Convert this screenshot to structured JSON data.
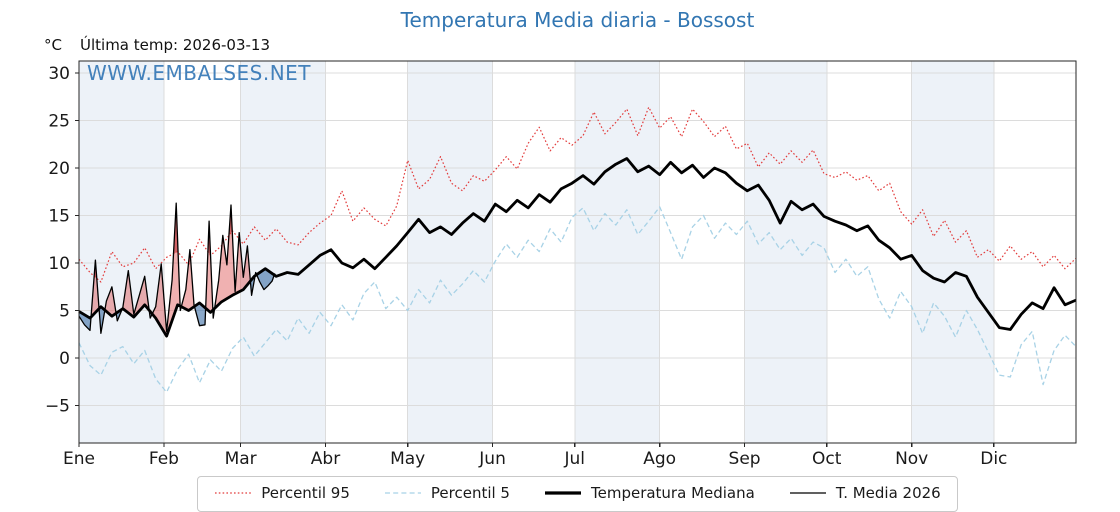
{
  "header": {
    "title": "Temperatura Media diaria - Bossost",
    "unit_label": "°C",
    "last_temp_label": "Última temp: 2026-03-13",
    "watermark": "WWW.EMBALSES.NET"
  },
  "legend": {
    "items": [
      {
        "label": "Percentil 95"
      },
      {
        "label": "Percentil 5"
      },
      {
        "label": "Temperatura Mediana"
      },
      {
        "label": "T. Media 2026"
      }
    ]
  },
  "colors": {
    "title": "#3276b2",
    "watermark": "#3578b6",
    "band": "#edf2f8",
    "grid": "#dcdcdc",
    "axis": "#262626"
  },
  "chart_data": {
    "type": "line",
    "title": "Temperatura Media diaria - Bossost",
    "ylabel": "°C",
    "x_tick_labels": [
      "Ene",
      "Feb",
      "Mar",
      "Abr",
      "May",
      "Jun",
      "Jul",
      "Ago",
      "Sep",
      "Oct",
      "Nov",
      "Dic"
    ],
    "month_start_days": [
      0,
      31,
      59,
      90,
      120,
      151,
      181,
      212,
      243,
      273,
      304,
      334
    ],
    "y_ticks": [
      30,
      25,
      20,
      15,
      10,
      5,
      0,
      -5
    ],
    "y_tick_labels": [
      "30",
      "25",
      "20",
      "15",
      "10",
      "5",
      "0",
      "−5"
    ],
    "ylim": [
      -9.0,
      31.3
    ],
    "xlim_days": [
      1,
      365
    ],
    "grid": true,
    "legend_position": "bottom",
    "fill_colors": {
      "above_median": "rgba(222,82,82,0.45)",
      "above_p95": "rgba(183,32,38,0.55)",
      "below_median": "rgba(60,110,165,0.6)"
    },
    "series": [
      {
        "id": "p95",
        "name": "Percentil 95",
        "color": "#e23b3b",
        "width": 1.2,
        "dash": "1.6 2.2",
        "day_start": 1,
        "day_step": 4,
        "values": [
          10.4,
          9.0,
          8.0,
          11.2,
          9.6,
          10.0,
          11.6,
          9.4,
          10.6,
          11.2,
          9.8,
          12.5,
          10.8,
          11.8,
          13.4,
          12.0,
          13.8,
          12.4,
          13.6,
          12.2,
          11.9,
          13.2,
          14.2,
          15.0,
          17.6,
          14.4,
          15.8,
          14.6,
          13.9,
          16.0,
          20.8,
          17.8,
          18.8,
          21.2,
          18.4,
          17.6,
          19.2,
          18.6,
          19.8,
          21.2,
          19.9,
          22.6,
          24.3,
          21.8,
          23.2,
          22.4,
          23.4,
          25.9,
          23.6,
          24.8,
          26.2,
          23.4,
          26.4,
          24.2,
          25.4,
          23.3,
          26.2,
          24.9,
          23.3,
          24.4,
          22.0,
          22.6,
          20.1,
          21.6,
          20.4,
          21.8,
          20.6,
          21.9,
          19.4,
          19.0,
          19.6,
          18.7,
          19.2,
          17.6,
          18.4,
          15.4,
          14.1,
          15.6,
          12.8,
          14.5,
          12.2,
          13.4,
          10.6,
          11.4,
          10.2,
          11.8,
          10.4,
          11.2,
          9.6,
          10.8,
          9.4,
          10.5
        ]
      },
      {
        "id": "p5",
        "name": "Percentil 5",
        "color": "#a8d2e6",
        "width": 1.3,
        "dash": "5 3.2",
        "day_start": 1,
        "day_step": 4,
        "values": [
          1.6,
          -0.8,
          -1.8,
          0.6,
          1.2,
          -0.6,
          0.8,
          -2.2,
          -3.6,
          -1.2,
          0.4,
          -2.6,
          -0.2,
          -1.4,
          1.0,
          2.2,
          0.2,
          1.6,
          3.0,
          1.8,
          4.2,
          2.6,
          4.8,
          3.4,
          5.6,
          4.0,
          6.8,
          8.0,
          5.2,
          6.4,
          5.0,
          7.2,
          5.8,
          8.2,
          6.6,
          7.8,
          9.2,
          8.0,
          10.2,
          12.0,
          10.6,
          12.4,
          11.2,
          13.6,
          12.2,
          14.8,
          15.8,
          13.4,
          15.2,
          14.0,
          15.6,
          13.0,
          14.4,
          15.9,
          13.2,
          10.4,
          13.8,
          15.0,
          12.6,
          14.2,
          13.0,
          14.4,
          12.0,
          13.2,
          11.4,
          12.6,
          10.8,
          12.2,
          11.6,
          9.0,
          10.4,
          8.6,
          9.6,
          6.2,
          4.2,
          7.0,
          5.4,
          2.6,
          5.8,
          4.4,
          2.2,
          5.0,
          3.0,
          0.6,
          -1.8,
          -2.0,
          1.4,
          2.8,
          -2.8,
          0.8,
          2.4,
          1.2
        ]
      },
      {
        "id": "mediana",
        "name": "Temperatura Mediana",
        "color": "#000000",
        "width": 2.8,
        "dash": "",
        "day_start": 1,
        "day_step": 4,
        "values": [
          4.9,
          4.2,
          5.4,
          4.4,
          5.2,
          4.3,
          5.6,
          4.2,
          2.3,
          5.6,
          5.0,
          5.8,
          4.8,
          5.9,
          6.6,
          7.2,
          8.6,
          9.4,
          8.6,
          9.0,
          8.8,
          9.8,
          10.8,
          11.4,
          10.0,
          9.5,
          10.4,
          9.4,
          10.6,
          11.8,
          13.2,
          14.6,
          13.2,
          13.8,
          13.0,
          14.2,
          15.2,
          14.4,
          16.2,
          15.4,
          16.6,
          15.8,
          17.2,
          16.4,
          17.8,
          18.4,
          19.2,
          18.3,
          19.6,
          20.4,
          21.0,
          19.6,
          20.2,
          19.3,
          20.6,
          19.5,
          20.3,
          19.0,
          20.0,
          19.5,
          18.4,
          17.6,
          18.2,
          16.6,
          14.2,
          16.5,
          15.6,
          16.2,
          14.9,
          14.4,
          14.0,
          13.4,
          13.9,
          12.4,
          11.6,
          10.4,
          10.8,
          9.2,
          8.4,
          8.0,
          9.0,
          8.6,
          6.4,
          4.8,
          3.2,
          3.0,
          4.6,
          5.8,
          5.2,
          7.4,
          5.6,
          6.1
        ]
      },
      {
        "id": "t2026",
        "name": "T. Media 2026",
        "color": "#000000",
        "width": 1.3,
        "dash": "",
        "days": [
          1,
          3,
          5,
          7,
          9,
          11,
          13,
          15,
          17,
          19,
          21,
          23,
          25,
          27,
          29,
          31,
          33,
          35,
          36.5,
          38,
          40,
          41.5,
          43,
          45,
          47,
          48.5,
          50,
          52,
          53.5,
          55,
          56.5,
          58,
          59.5,
          61,
          62.5,
          64,
          65.5,
          67,
          68.5,
          70,
          71.5,
          72.5
        ],
        "values": [
          4.4,
          3.5,
          2.9,
          10.3,
          2.6,
          6.0,
          7.5,
          3.9,
          5.3,
          9.2,
          4.6,
          6.6,
          8.6,
          4.2,
          5.4,
          9.9,
          2.8,
          8.2,
          16.3,
          5.0,
          7.2,
          11.4,
          5.6,
          3.4,
          3.5,
          14.4,
          4.2,
          8.2,
          12.9,
          9.8,
          16.1,
          7.0,
          13.2,
          8.5,
          11.8,
          6.6,
          9.0,
          8.0,
          7.2,
          7.6,
          8.1,
          8.9
        ]
      }
    ]
  }
}
